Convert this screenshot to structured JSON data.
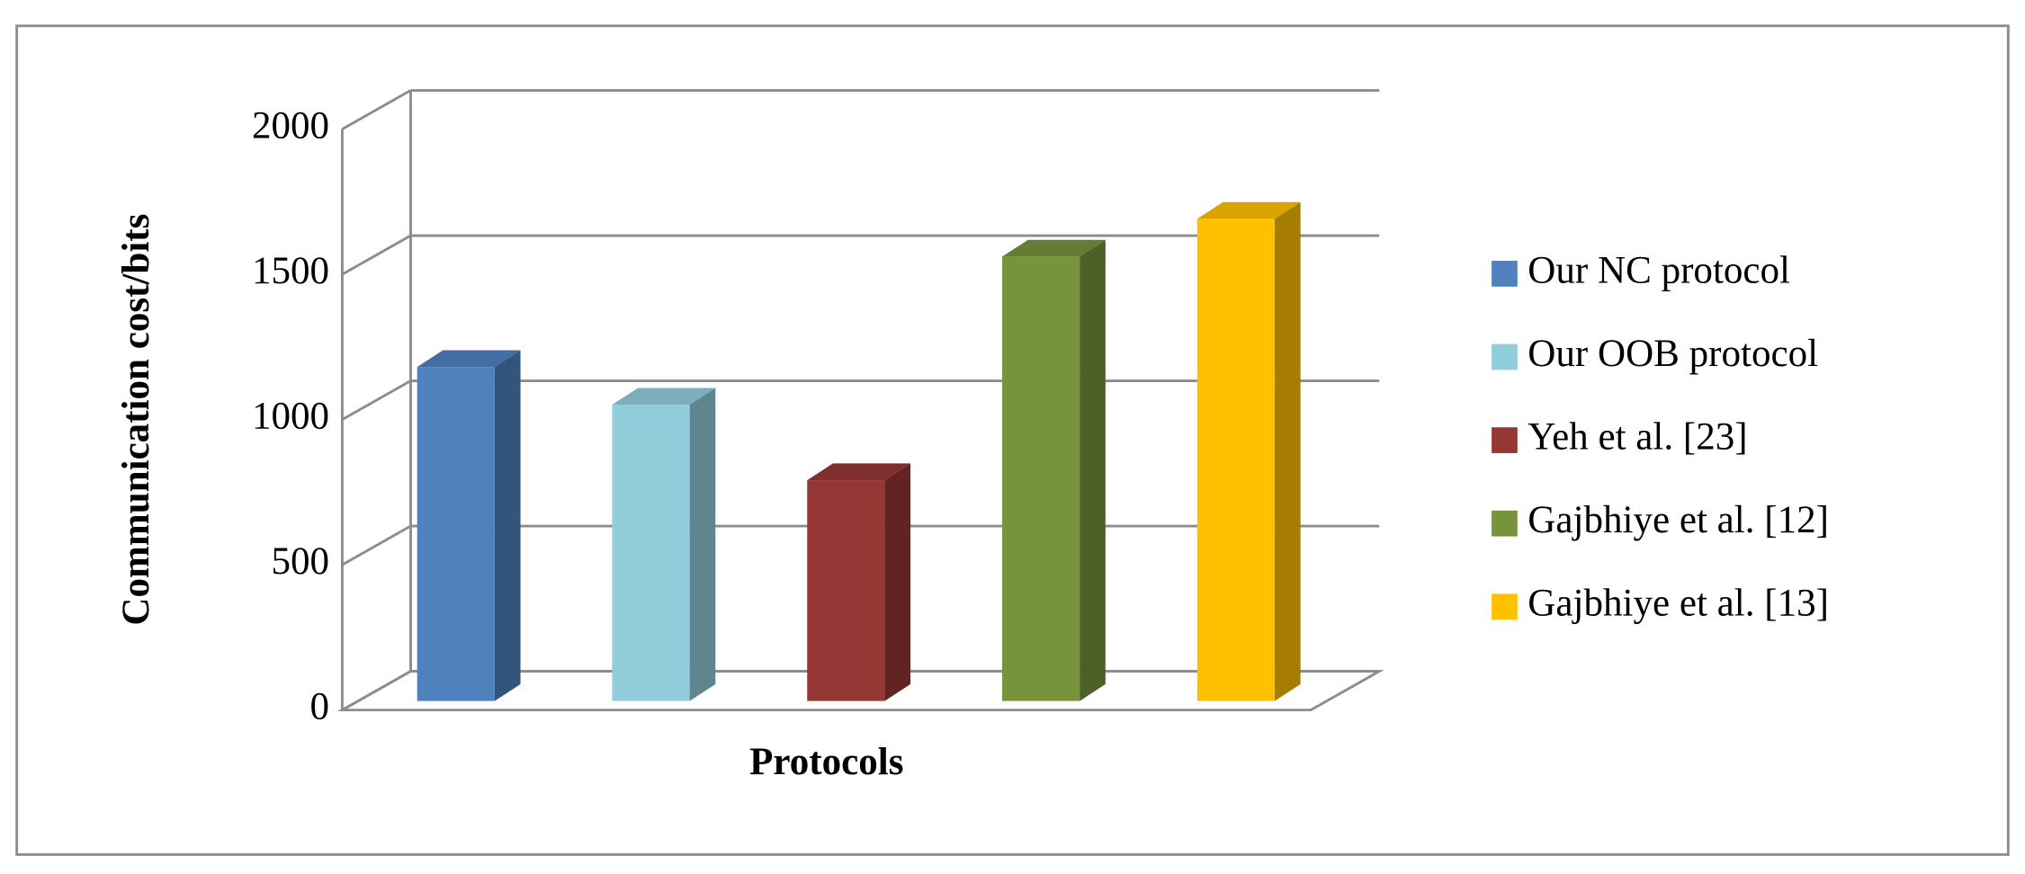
{
  "chart_data": {
    "type": "bar3d",
    "categories": [
      null
    ],
    "x_label": "Protocols",
    "y_label": "Communication cost/bits",
    "series": [
      {
        "name": "Our NC protocol",
        "color": "#4f81bd",
        "values": [
          1150
        ]
      },
      {
        "name": "Our OOB protocol",
        "color": "#92cddc",
        "values": [
          1020
        ]
      },
      {
        "name": "Yeh et al. [23]",
        "color": "#953735",
        "values": [
          760
        ]
      },
      {
        "name": "Gajbhiye et al. [12]",
        "color": "#77933c",
        "values": [
          1530
        ]
      },
      {
        "name": "Gajbhiye et al. [13]",
        "color": "#ffc000",
        "values": [
          1660
        ]
      }
    ],
    "ylim": [
      0,
      2000
    ],
    "yticks": [
      0,
      500,
      1000,
      1500,
      2000
    ],
    "grid": true,
    "legend": "right"
  }
}
